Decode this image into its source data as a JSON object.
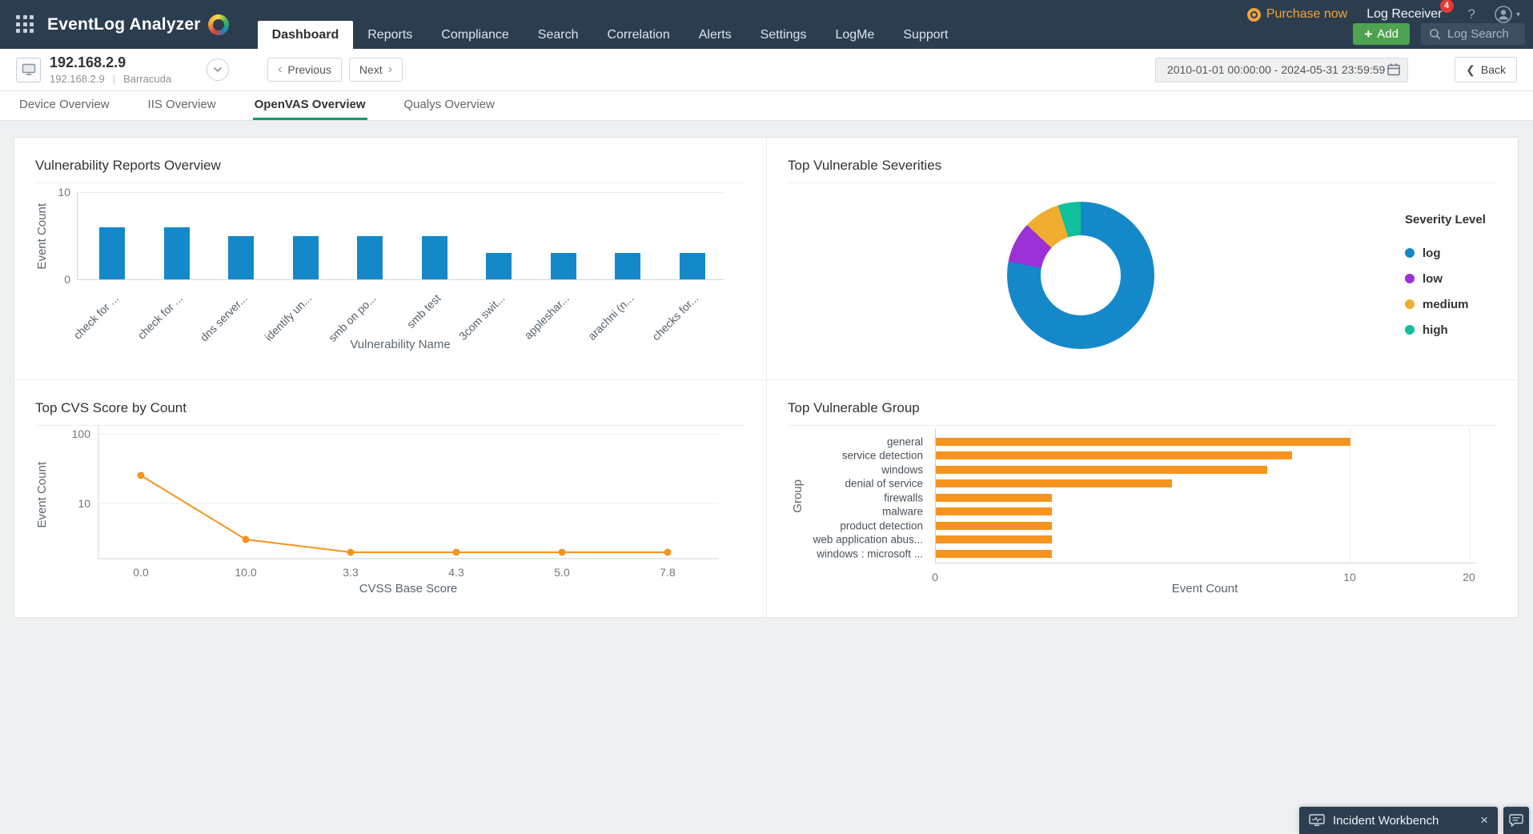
{
  "topbar": {
    "logo": "EventLog Analyzer",
    "nav": [
      {
        "label": "Dashboard",
        "active": true
      },
      {
        "label": "Reports",
        "active": false
      },
      {
        "label": "Compliance",
        "active": false
      },
      {
        "label": "Search",
        "active": false
      },
      {
        "label": "Correlation",
        "active": false
      },
      {
        "label": "Alerts",
        "active": false
      },
      {
        "label": "Settings",
        "active": false
      },
      {
        "label": "LogMe",
        "active": false
      },
      {
        "label": "Support",
        "active": false
      }
    ],
    "purchase_now": "Purchase now",
    "log_receiver": "Log Receiver",
    "log_receiver_badge": "4",
    "help_label": "?",
    "add_label": "Add",
    "log_search_placeholder": "Log Search"
  },
  "device_header": {
    "title": "192.168.2.9",
    "ip": "192.168.2.9",
    "device_type": "Barracuda",
    "previous_label": "Previous",
    "next_label": "Next",
    "date_range": "2010-01-01 00:00:00 - 2024-05-31 23:59:59",
    "back_label": "Back"
  },
  "tabs": [
    {
      "label": "Device Overview",
      "active": false
    },
    {
      "label": "IIS Overview",
      "active": false
    },
    {
      "label": "OpenVAS Overview",
      "active": true
    },
    {
      "label": "Qualys Overview",
      "active": false
    }
  ],
  "incident_workbench": {
    "label": "Incident Workbench"
  },
  "colors": {
    "topbar_bg": "#2b3d4f",
    "accent_green": "#0b9c68",
    "add_green": "#4fa24f",
    "bar_blue": "#1588c9",
    "orange": "#f6941e",
    "purple": "#9b30d6",
    "amber": "#f0ad2f",
    "teal": "#10bf9b",
    "badge_red": "#e53935"
  },
  "chart_data": [
    {
      "type": "bar",
      "title": "Vulnerability Reports Overview",
      "categories": [
        "check for ...",
        "check for ...",
        "dns server...",
        "identify un...",
        "smb on po...",
        "smb test",
        "3com swit...",
        "appleshar...",
        "arachni (n...",
        "checks for..."
      ],
      "values": [
        6,
        6,
        5,
        5,
        5,
        5,
        3,
        3,
        3,
        3
      ],
      "xlabel": "Vulnerability Name",
      "ylabel": "Event Count",
      "yticks": [
        0,
        10
      ],
      "ylim": [
        0,
        10
      ],
      "color": "#1588c9",
      "grid": true,
      "legend_position": "none"
    },
    {
      "type": "donut",
      "title": "Top Vulnerable Severities",
      "legend_title": "Severity Level",
      "legend_position": "right",
      "slices": [
        {
          "label": "log",
          "value": 78,
          "color": "#1588c9"
        },
        {
          "label": "low",
          "value": 9,
          "color": "#9b30d6"
        },
        {
          "label": "medium",
          "value": 8,
          "color": "#f0ad2f"
        },
        {
          "label": "high",
          "value": 5,
          "color": "#10bf9b"
        }
      ]
    },
    {
      "type": "line",
      "title": "Top CVS Score by Count",
      "x": [
        "0.0",
        "10.0",
        "3.3",
        "4.3",
        "5.0",
        "7.8"
      ],
      "values": [
        25,
        3,
        2,
        2,
        2,
        2
      ],
      "xlabel": "CVSS Base Score",
      "ylabel": "Event Count",
      "yticks": [
        10,
        100
      ],
      "yscale": "log",
      "color": "#f6941e",
      "marker": "circle",
      "grid": true
    },
    {
      "type": "horizontal_bar",
      "title": "Top Vulnerable Group",
      "categories": [
        "general",
        "service detection",
        "windows",
        "denial of service",
        "firewalls",
        "malware",
        "product detection",
        "web application abus...",
        "windows : microsoft ..."
      ],
      "values": [
        10,
        8.6,
        8,
        5.7,
        2.8,
        2.8,
        2.8,
        2.8,
        2.8
      ],
      "xlabel": "Event Count",
      "ylabel": "Group",
      "xticks": [
        0,
        10,
        20
      ],
      "xlim": [
        0,
        20
      ],
      "color": "#f6941e",
      "grid": true
    }
  ]
}
